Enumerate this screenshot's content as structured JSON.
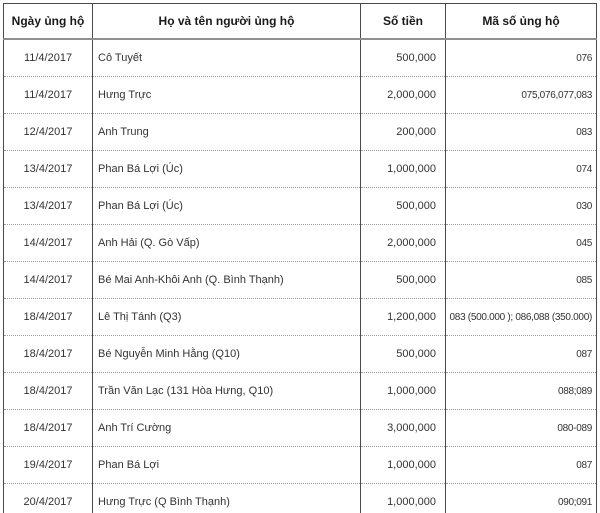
{
  "table": {
    "columns": [
      {
        "key": "date",
        "label": "Ngày ủng hộ",
        "align": "center"
      },
      {
        "key": "name",
        "label": "Họ và tên người ủng hộ",
        "align": "left"
      },
      {
        "key": "amount",
        "label": "Số tiền",
        "align": "right"
      },
      {
        "key": "code",
        "label": "Mã số ủng hộ",
        "align": "right"
      }
    ],
    "rows": [
      [
        "11/4/2017",
        "Cô Tuyết",
        "500,000",
        "076"
      ],
      [
        "11/4/2017",
        "Hưng Trực",
        "2,000,000",
        "075,076,077,083"
      ],
      [
        "12/4/2017",
        "Anh Trung",
        "200,000",
        "083"
      ],
      [
        "13/4/2017",
        "Phan Bá Lợi (Úc)",
        "1,000,000",
        "074"
      ],
      [
        "13/4/2017",
        "Phan Bá Lợi (Úc)",
        "500,000",
        "030"
      ],
      [
        "14/4/2017",
        "Anh Hải (Q. Gò Vấp)",
        "2,000,000",
        "045"
      ],
      [
        "14/4/2017",
        "Bé Mai Anh-Khôi Anh (Q. Bình Thạnh)",
        "500,000",
        "085"
      ],
      [
        "18/4/2017",
        "Lê Thị Tánh (Q3)",
        "1,200,000",
        "083 (500.000 ); 086,088 (350.000)"
      ],
      [
        "18/4/2017",
        "Bé Nguyễn Minh Hằng (Q10)",
        "500,000",
        "087"
      ],
      [
        "18/4/2017",
        "Trần Văn Lạc (131 Hòa Hưng, Q10)",
        "1,000,000",
        "088;089"
      ],
      [
        "18/4/2017",
        "Anh Trí Cường",
        "3,000,000",
        "080-089"
      ],
      [
        "19/4/2017",
        "Phan Bá Lợi",
        "1,000,000",
        "087"
      ],
      [
        "20/4/2017",
        "Hưng Trực (Q Bình Thạnh)",
        "1,000,000",
        "090;091"
      ]
    ],
    "border_colors": {
      "outer_and_vertical": "#4a4a4a",
      "header_rule": "#8f8f8f",
      "row_separator_dotted": "#9a9a9a"
    }
  }
}
